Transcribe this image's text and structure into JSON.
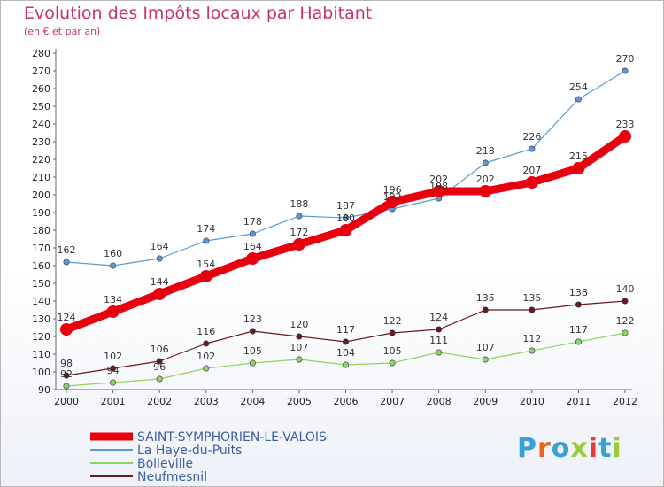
{
  "title": "Evolution des Impôts locaux par Habitant",
  "subtitle": "(en € et par an)",
  "brand": "Proxiti",
  "chart_data": {
    "type": "line",
    "title": "Evolution des Impôts locaux par Habitant",
    "subtitle": "(en € et par an)",
    "x": [
      "2000",
      "2001",
      "2002",
      "2003",
      "2004",
      "2005",
      "2006",
      "2007",
      "2008",
      "2009",
      "2010",
      "2011",
      "2012"
    ],
    "ylim": [
      90,
      280
    ],
    "yticks": [
      90,
      100,
      110,
      120,
      130,
      140,
      150,
      160,
      170,
      180,
      190,
      200,
      210,
      220,
      230,
      240,
      250,
      260,
      270,
      280
    ],
    "grid": false,
    "legend": "bottom-left",
    "series": [
      {
        "name": "SAINT-SYMPHORIEN-LE-VALOIS",
        "color": "#e8000e",
        "values": [
          124,
          134,
          144,
          154,
          164,
          172,
          180,
          196,
          202,
          202,
          207,
          215,
          233
        ]
      },
      {
        "name": "La Haye-du-Puits",
        "color": "#5b9ad0",
        "values": [
          162,
          160,
          164,
          174,
          178,
          188,
          187,
          192,
          198,
          218,
          226,
          254,
          270
        ]
      },
      {
        "name": "Bolleville",
        "color": "#8fd45c",
        "values": [
          92,
          94,
          96,
          102,
          105,
          107,
          104,
          105,
          111,
          107,
          112,
          117,
          122
        ]
      },
      {
        "name": "Neufmesnil",
        "color": "#6b1a1a",
        "values": [
          98,
          102,
          106,
          116,
          123,
          120,
          117,
          122,
          124,
          135,
          135,
          138,
          140
        ]
      }
    ],
    "point_labels": {
      "SAINT-SYMPHORIEN-LE-VALOIS": [
        "124",
        "134",
        "144",
        "154",
        "164",
        "172",
        "180",
        "196",
        "202",
        "202",
        "207",
        "215",
        "233"
      ],
      "La Haye-du-Puits": [
        "162",
        "160",
        "164",
        "174",
        "178",
        "188",
        "187",
        "192",
        "198",
        "218",
        "226",
        "254",
        "270"
      ],
      "Bolleville": [
        "92",
        "94",
        "96",
        "102",
        "105",
        "107",
        "104",
        "105",
        "111",
        "107",
        "112",
        "117",
        "122"
      ],
      "Neufmesnil": [
        "98",
        "102",
        "106",
        "116",
        "123",
        "120",
        "117",
        "122",
        "124",
        "135",
        "135",
        "138",
        "140"
      ]
    }
  }
}
